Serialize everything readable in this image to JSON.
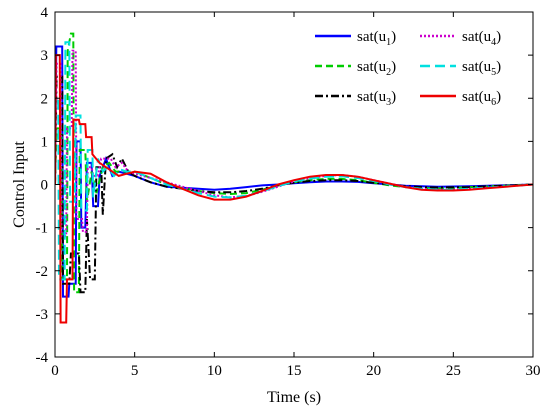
{
  "chart_data": {
    "type": "line",
    "title": "",
    "xlabel": "Time (s)",
    "ylabel": "Control Input",
    "xlim": [
      0,
      30
    ],
    "ylim": [
      -4,
      4
    ],
    "xticks": [
      "0",
      "5",
      "10",
      "15",
      "20",
      "25",
      "30"
    ],
    "yticks": [
      "-4",
      "-3",
      "-2",
      "-1",
      "0",
      "1",
      "2",
      "3",
      "4"
    ],
    "grid": false,
    "legend_position": "top-right",
    "series": [
      {
        "name": "sat(u1)",
        "base": "sat(u",
        "sub": "1",
        "color": "#0000ff",
        "dash": "",
        "points": [
          [
            0,
            0
          ],
          [
            0.08,
            3.2
          ],
          [
            0.45,
            3.2
          ],
          [
            0.5,
            -2.6
          ],
          [
            0.85,
            -2.6
          ],
          [
            0.9,
            -2.3
          ],
          [
            1.3,
            -2.3
          ],
          [
            1.35,
            1.0
          ],
          [
            1.6,
            1.0
          ],
          [
            1.65,
            -1.0
          ],
          [
            1.9,
            -1.0
          ],
          [
            2.0,
            0.5
          ],
          [
            2.3,
            0.5
          ],
          [
            2.4,
            -0.5
          ],
          [
            2.7,
            -0.5
          ],
          [
            2.8,
            0.2
          ],
          [
            3.2,
            0.6
          ],
          [
            3.6,
            0.2
          ],
          [
            4.0,
            0.3
          ],
          [
            5,
            0.2
          ],
          [
            6,
            0.05
          ],
          [
            7,
            -0.05
          ],
          [
            9,
            -0.1
          ],
          [
            10,
            -0.12
          ],
          [
            11,
            -0.1
          ],
          [
            12,
            -0.06
          ],
          [
            13,
            -0.02
          ],
          [
            14,
            0.0
          ],
          [
            15,
            0.03
          ],
          [
            16,
            0.05
          ],
          [
            17,
            0.07
          ],
          [
            18,
            0.07
          ],
          [
            19,
            0.06
          ],
          [
            20,
            0.03
          ],
          [
            21,
            0.0
          ],
          [
            22,
            -0.03
          ],
          [
            24,
            -0.05
          ],
          [
            26,
            -0.04
          ],
          [
            28,
            -0.02
          ],
          [
            30,
            0
          ]
        ]
      },
      {
        "name": "sat(u2)",
        "base": "sat(u",
        "sub": "2",
        "color": "#00cc00",
        "dash": "7,4",
        "points": [
          [
            0,
            0
          ],
          [
            0.1,
            1.3
          ],
          [
            0.4,
            1.3
          ],
          [
            0.45,
            -2.2
          ],
          [
            0.75,
            -2.2
          ],
          [
            0.8,
            3.1
          ],
          [
            1.0,
            3.5
          ],
          [
            1.15,
            3.5
          ],
          [
            1.2,
            -2.5
          ],
          [
            1.5,
            -2.5
          ],
          [
            1.55,
            0.8
          ],
          [
            1.9,
            0.8
          ],
          [
            2.0,
            -0.4
          ],
          [
            2.3,
            0.3
          ],
          [
            2.6,
            -0.2
          ],
          [
            3.0,
            0.4
          ],
          [
            3.4,
            0.5
          ],
          [
            3.8,
            0.3
          ],
          [
            4.5,
            0.3
          ],
          [
            5,
            0.3
          ],
          [
            6,
            0.15
          ],
          [
            7,
            0.0
          ],
          [
            8,
            -0.08
          ],
          [
            9,
            -0.15
          ],
          [
            10,
            -0.2
          ],
          [
            11,
            -0.22
          ],
          [
            12,
            -0.2
          ],
          [
            13,
            -0.12
          ],
          [
            14,
            -0.02
          ],
          [
            15,
            0.05
          ],
          [
            16,
            0.1
          ],
          [
            17,
            0.13
          ],
          [
            18,
            0.13
          ],
          [
            19,
            0.1
          ],
          [
            20,
            0.04
          ],
          [
            21,
            -0.02
          ],
          [
            22,
            -0.06
          ],
          [
            23,
            -0.08
          ],
          [
            24,
            -0.09
          ],
          [
            25,
            -0.08
          ],
          [
            26,
            -0.06
          ],
          [
            28,
            -0.03
          ],
          [
            30,
            0
          ]
        ]
      },
      {
        "name": "sat(u3)",
        "base": "sat(u",
        "sub": "3",
        "color": "#000000",
        "dash": "8,3,2,3",
        "points": [
          [
            0,
            0
          ],
          [
            0.1,
            2.5
          ],
          [
            0.45,
            2.5
          ],
          [
            0.5,
            -2.3
          ],
          [
            0.9,
            -2.3
          ],
          [
            1.0,
            -1.6
          ],
          [
            1.5,
            -1.6
          ],
          [
            1.6,
            -2.5
          ],
          [
            1.9,
            -2.5
          ],
          [
            2.0,
            -0.8
          ],
          [
            2.2,
            -2.2
          ],
          [
            2.5,
            -2.2
          ],
          [
            2.6,
            0.4
          ],
          [
            2.9,
            0.4
          ],
          [
            3.0,
            -0.7
          ],
          [
            3.2,
            0.6
          ],
          [
            3.6,
            0.7
          ],
          [
            3.9,
            0.4
          ],
          [
            4.2,
            0.6
          ],
          [
            4.6,
            0.3
          ],
          [
            5,
            0.2
          ],
          [
            6,
            0.05
          ],
          [
            7,
            -0.05
          ],
          [
            8,
            -0.1
          ],
          [
            9,
            -0.15
          ],
          [
            10,
            -0.18
          ],
          [
            11,
            -0.18
          ],
          [
            12,
            -0.15
          ],
          [
            13,
            -0.1
          ],
          [
            14,
            -0.02
          ],
          [
            15,
            0.04
          ],
          [
            16,
            0.08
          ],
          [
            17,
            0.1
          ],
          [
            18,
            0.1
          ],
          [
            19,
            0.08
          ],
          [
            20,
            0.04
          ],
          [
            21,
            0.0
          ],
          [
            22,
            -0.04
          ],
          [
            23,
            -0.06
          ],
          [
            24,
            -0.07
          ],
          [
            26,
            -0.06
          ],
          [
            28,
            -0.03
          ],
          [
            30,
            0
          ]
        ]
      },
      {
        "name": "sat(u4)",
        "base": "sat(u",
        "sub": "4",
        "color": "#cc00cc",
        "dash": "2,2",
        "points": [
          [
            0,
            0
          ],
          [
            0.1,
            2.8
          ],
          [
            0.35,
            2.8
          ],
          [
            0.4,
            -1.2
          ],
          [
            0.7,
            -1.2
          ],
          [
            0.75,
            1.3
          ],
          [
            1.05,
            1.3
          ],
          [
            1.1,
            3.1
          ],
          [
            1.3,
            3.1
          ],
          [
            1.35,
            -0.8
          ],
          [
            1.7,
            -0.8
          ],
          [
            1.75,
            -1.1
          ],
          [
            2.0,
            -1.1
          ],
          [
            2.05,
            0.4
          ],
          [
            2.3,
            0.4
          ],
          [
            2.4,
            0.2
          ],
          [
            2.7,
            0.2
          ],
          [
            2.9,
            0.6
          ],
          [
            3.2,
            0.6
          ],
          [
            3.5,
            0.6
          ],
          [
            3.8,
            0.4
          ],
          [
            4.2,
            0.5
          ],
          [
            4.6,
            0.3
          ],
          [
            5,
            0.25
          ],
          [
            6,
            0.15
          ],
          [
            7,
            0.05
          ],
          [
            8,
            -0.05
          ],
          [
            9,
            -0.15
          ],
          [
            10,
            -0.25
          ],
          [
            11,
            -0.3
          ],
          [
            12,
            -0.27
          ],
          [
            13,
            -0.17
          ],
          [
            14,
            -0.05
          ],
          [
            15,
            0.07
          ],
          [
            16,
            0.15
          ],
          [
            17,
            0.2
          ],
          [
            18,
            0.22
          ],
          [
            19,
            0.18
          ],
          [
            20,
            0.1
          ],
          [
            21,
            0.02
          ],
          [
            22,
            -0.05
          ],
          [
            23,
            -0.1
          ],
          [
            24,
            -0.12
          ],
          [
            25,
            -0.12
          ],
          [
            26,
            -0.1
          ],
          [
            28,
            -0.05
          ],
          [
            30,
            0
          ]
        ]
      },
      {
        "name": "sat(u5)",
        "base": "sat(u",
        "sub": "5",
        "color": "#00e0e0",
        "dash": "10,5",
        "points": [
          [
            0,
            0
          ],
          [
            0.05,
            2.0
          ],
          [
            0.2,
            2.0
          ],
          [
            0.25,
            -2.2
          ],
          [
            0.6,
            -2.2
          ],
          [
            0.65,
            3.3
          ],
          [
            0.9,
            3.3
          ],
          [
            0.95,
            -0.4
          ],
          [
            1.25,
            -0.4
          ],
          [
            1.3,
            1.6
          ],
          [
            1.6,
            1.6
          ],
          [
            1.65,
            -0.6
          ],
          [
            2.0,
            -0.6
          ],
          [
            2.05,
            0.8
          ],
          [
            2.35,
            0.8
          ],
          [
            2.4,
            -0.3
          ],
          [
            2.7,
            0.6
          ],
          [
            3.0,
            0.3
          ],
          [
            3.3,
            0.4
          ],
          [
            3.7,
            0.2
          ],
          [
            4.1,
            0.35
          ],
          [
            4.5,
            0.3
          ],
          [
            5,
            0.3
          ],
          [
            6,
            0.15
          ],
          [
            7,
            0.0
          ],
          [
            8,
            -0.1
          ],
          [
            9,
            -0.2
          ],
          [
            10,
            -0.28
          ],
          [
            11,
            -0.3
          ],
          [
            12,
            -0.26
          ],
          [
            13,
            -0.16
          ],
          [
            14,
            -0.04
          ],
          [
            15,
            0.07
          ],
          [
            16,
            0.14
          ],
          [
            17,
            0.18
          ],
          [
            18,
            0.19
          ],
          [
            19,
            0.15
          ],
          [
            20,
            0.08
          ],
          [
            21,
            0.0
          ],
          [
            22,
            -0.06
          ],
          [
            23,
            -0.1
          ],
          [
            24,
            -0.12
          ],
          [
            25,
            -0.12
          ],
          [
            26,
            -0.1
          ],
          [
            28,
            -0.05
          ],
          [
            30,
            0
          ]
        ]
      },
      {
        "name": "sat(u6)",
        "base": "sat(u",
        "sub": "6",
        "color": "#ee0000",
        "dash": "",
        "points": [
          [
            0,
            0
          ],
          [
            0.05,
            3.0
          ],
          [
            0.3,
            3.0
          ],
          [
            0.35,
            -3.2
          ],
          [
            0.7,
            -3.2
          ],
          [
            0.75,
            -2.2
          ],
          [
            1.1,
            -2.2
          ],
          [
            1.15,
            1.5
          ],
          [
            1.5,
            1.5
          ],
          [
            1.55,
            1.4
          ],
          [
            1.9,
            1.4
          ],
          [
            1.95,
            1.1
          ],
          [
            2.3,
            1.1
          ],
          [
            2.35,
            0.7
          ],
          [
            2.8,
            0.5
          ],
          [
            3.2,
            0.4
          ],
          [
            3.6,
            0.3
          ],
          [
            4,
            0.2
          ],
          [
            5,
            0.3
          ],
          [
            6,
            0.25
          ],
          [
            7,
            0.05
          ],
          [
            8,
            -0.1
          ],
          [
            9,
            -0.25
          ],
          [
            10,
            -0.35
          ],
          [
            11,
            -0.35
          ],
          [
            12,
            -0.28
          ],
          [
            13,
            -0.15
          ],
          [
            14,
            0.0
          ],
          [
            15,
            0.1
          ],
          [
            16,
            0.18
          ],
          [
            17,
            0.22
          ],
          [
            18,
            0.22
          ],
          [
            19,
            0.18
          ],
          [
            20,
            0.1
          ],
          [
            21,
            0.02
          ],
          [
            22,
            -0.06
          ],
          [
            23,
            -0.12
          ],
          [
            24,
            -0.14
          ],
          [
            25,
            -0.14
          ],
          [
            26,
            -0.12
          ],
          [
            27,
            -0.09
          ],
          [
            28,
            -0.06
          ],
          [
            29,
            -0.03
          ],
          [
            30,
            0
          ]
        ]
      }
    ]
  }
}
